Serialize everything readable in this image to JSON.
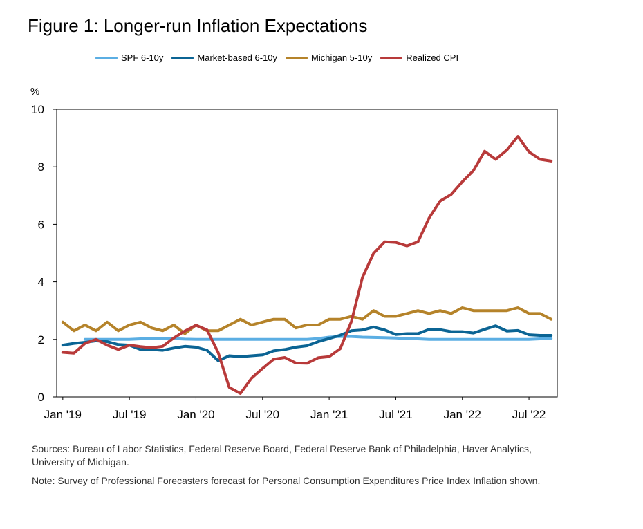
{
  "title": "Figure 1: Longer-run Inflation Expectations",
  "unit_label": "%",
  "sources": "Sources: Bureau of Labor Statistics, Federal Reserve Board, Federal Reserve Bank of Philadelphia, Haver Analytics, University of Michigan.",
  "note": "Note: Survey of Professional Forecasters forecast for Personal Consumption Expenditures Price Index Inflation shown.",
  "chart_data": {
    "type": "line",
    "x_start": "2019-01",
    "x_end": "2022-09",
    "x_tick_labels": [
      "Jan '19",
      "Jul '19",
      "Jan '20",
      "Jul '20",
      "Jan '21",
      "Jul '21",
      "Jan '22",
      "Jul '22"
    ],
    "x_tick_dates": [
      "2019-01",
      "2019-07",
      "2020-01",
      "2020-07",
      "2021-01",
      "2021-07",
      "2022-01",
      "2022-07"
    ],
    "ylim": [
      0,
      10
    ],
    "y_ticks": [
      0,
      2,
      4,
      6,
      8,
      10
    ],
    "grid": false,
    "legend_position": "top",
    "series": [
      {
        "name": "SPF 6-10y",
        "color": "#5BAEE3",
        "x": [
          "2019-03",
          "2019-04",
          "2019-05",
          "2019-06",
          "2019-07",
          "2019-08",
          "2019-09",
          "2019-10",
          "2019-11",
          "2019-12",
          "2020-01",
          "2020-02",
          "2020-03",
          "2020-04",
          "2020-05",
          "2020-06",
          "2020-07",
          "2020-08",
          "2020-09",
          "2020-10",
          "2020-11",
          "2020-12",
          "2021-01",
          "2021-02",
          "2021-03",
          "2021-04",
          "2021-05",
          "2021-06",
          "2021-07",
          "2021-08",
          "2021-09",
          "2021-10",
          "2021-11",
          "2021-12",
          "2022-01",
          "2022-02",
          "2022-03",
          "2022-04",
          "2022-05",
          "2022-06",
          "2022-07",
          "2022-08",
          "2022-09"
        ],
        "values": [
          2.0,
          2.0,
          2.0,
          2.0,
          2.0,
          2.02,
          2.03,
          2.04,
          2.03,
          2.01,
          2.0,
          2.0,
          2.0,
          2.0,
          2.0,
          2.0,
          2.0,
          2.0,
          2.0,
          2.0,
          2.0,
          2.03,
          2.08,
          2.1,
          2.1,
          2.08,
          2.07,
          2.06,
          2.05,
          2.03,
          2.02,
          2.0,
          2.0,
          2.0,
          2.0,
          2.0,
          2.0,
          2.0,
          2.0,
          2.0,
          2.0,
          2.02,
          2.03
        ]
      },
      {
        "name": "Market-based 6-10y",
        "color": "#0B6494",
        "x": [
          "2019-01",
          "2019-02",
          "2019-03",
          "2019-04",
          "2019-05",
          "2019-06",
          "2019-07",
          "2019-08",
          "2019-09",
          "2019-10",
          "2019-11",
          "2019-12",
          "2020-01",
          "2020-02",
          "2020-03",
          "2020-04",
          "2020-05",
          "2020-06",
          "2020-07",
          "2020-08",
          "2020-09",
          "2020-10",
          "2020-11",
          "2020-12",
          "2021-01",
          "2021-02",
          "2021-03",
          "2021-04",
          "2021-05",
          "2021-06",
          "2021-07",
          "2021-08",
          "2021-09",
          "2021-10",
          "2021-11",
          "2021-12",
          "2022-01",
          "2022-02",
          "2022-03",
          "2022-04",
          "2022-05",
          "2022-06",
          "2022-07",
          "2022-08",
          "2022-09"
        ],
        "values": [
          1.8,
          1.86,
          1.9,
          1.95,
          1.92,
          1.82,
          1.8,
          1.65,
          1.65,
          1.62,
          1.7,
          1.76,
          1.73,
          1.62,
          1.26,
          1.43,
          1.4,
          1.43,
          1.46,
          1.6,
          1.65,
          1.73,
          1.78,
          1.92,
          2.03,
          2.15,
          2.3,
          2.33,
          2.43,
          2.33,
          2.17,
          2.2,
          2.2,
          2.35,
          2.34,
          2.27,
          2.27,
          2.22,
          2.35,
          2.47,
          2.29,
          2.31,
          2.16,
          2.14,
          2.14
        ]
      },
      {
        "name": "Michigan 5-10y",
        "color": "#B5832A",
        "x": [
          "2019-01",
          "2019-02",
          "2019-03",
          "2019-04",
          "2019-05",
          "2019-06",
          "2019-07",
          "2019-08",
          "2019-09",
          "2019-10",
          "2019-11",
          "2019-12",
          "2020-01",
          "2020-02",
          "2020-03",
          "2020-04",
          "2020-05",
          "2020-06",
          "2020-07",
          "2020-08",
          "2020-09",
          "2020-10",
          "2020-11",
          "2020-12",
          "2021-01",
          "2021-02",
          "2021-03",
          "2021-04",
          "2021-05",
          "2021-06",
          "2021-07",
          "2021-08",
          "2021-09",
          "2021-10",
          "2021-11",
          "2021-12",
          "2022-01",
          "2022-02",
          "2022-03",
          "2022-04",
          "2022-05",
          "2022-06",
          "2022-07",
          "2022-08",
          "2022-09"
        ],
        "values": [
          2.6,
          2.3,
          2.5,
          2.3,
          2.6,
          2.3,
          2.5,
          2.6,
          2.4,
          2.3,
          2.5,
          2.2,
          2.5,
          2.3,
          2.3,
          2.5,
          2.7,
          2.5,
          2.6,
          2.7,
          2.7,
          2.4,
          2.5,
          2.5,
          2.7,
          2.7,
          2.8,
          2.7,
          3.0,
          2.8,
          2.8,
          2.9,
          3.0,
          2.9,
          3.0,
          2.9,
          3.1,
          3.0,
          3.0,
          3.0,
          3.0,
          3.1,
          2.9,
          2.9,
          2.7
        ]
      },
      {
        "name": "Realized CPI",
        "color": "#B83A3A",
        "x": [
          "2019-01",
          "2019-02",
          "2019-03",
          "2019-04",
          "2019-05",
          "2019-06",
          "2019-07",
          "2019-08",
          "2019-09",
          "2019-10",
          "2019-11",
          "2019-12",
          "2020-01",
          "2020-02",
          "2020-03",
          "2020-04",
          "2020-05",
          "2020-06",
          "2020-07",
          "2020-08",
          "2020-09",
          "2020-10",
          "2020-11",
          "2020-12",
          "2021-01",
          "2021-02",
          "2021-03",
          "2021-04",
          "2021-05",
          "2021-06",
          "2021-07",
          "2021-08",
          "2021-09",
          "2021-10",
          "2021-11",
          "2021-12",
          "2022-01",
          "2022-02",
          "2022-03",
          "2022-04",
          "2022-05",
          "2022-06",
          "2022-07",
          "2022-08",
          "2022-09"
        ],
        "values": [
          1.55,
          1.52,
          1.86,
          2.0,
          1.8,
          1.65,
          1.8,
          1.75,
          1.71,
          1.76,
          2.05,
          2.29,
          2.49,
          2.33,
          1.54,
          0.33,
          0.12,
          0.65,
          0.99,
          1.31,
          1.37,
          1.18,
          1.17,
          1.36,
          1.4,
          1.68,
          2.62,
          4.16,
          4.99,
          5.39,
          5.37,
          5.25,
          5.39,
          6.22,
          6.81,
          7.04,
          7.48,
          7.87,
          8.54,
          8.26,
          8.58,
          9.06,
          8.52,
          8.26,
          8.2
        ]
      }
    ]
  }
}
